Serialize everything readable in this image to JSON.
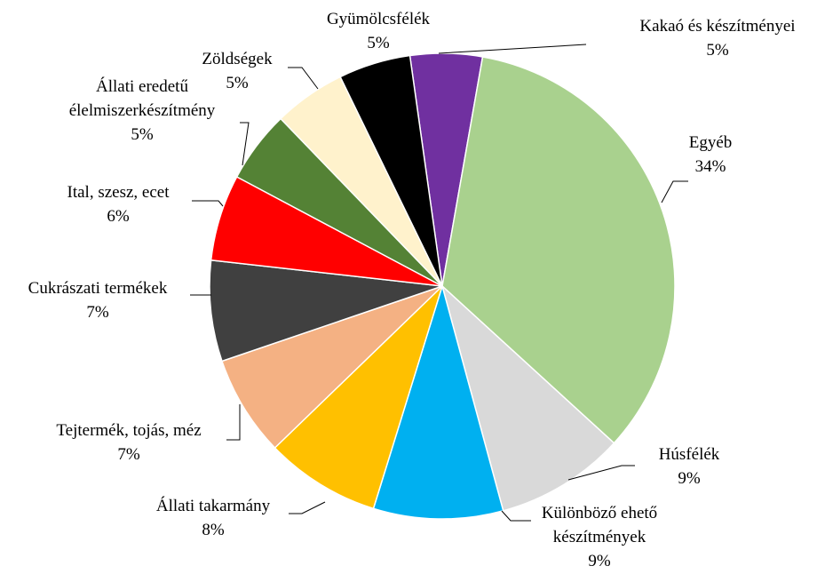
{
  "chart_data": {
    "type": "pie",
    "categories": [
      "Kakaó és készítményei",
      "Egyéb",
      "Húsfélék",
      "Különböző ehető\nkészítmények",
      "Állati takarmány",
      "Tejtermék, tojás, méz",
      "Cukrászati termékek",
      "Ital, szesz, ecet",
      "Állati eredetű\nélelmiszerkészítmény",
      "Zöldségek",
      "Gyümölcsfélék"
    ],
    "values": [
      5,
      34,
      9,
      9,
      8,
      7,
      7,
      6,
      5,
      5,
      5
    ],
    "value_labels": [
      "5%",
      "34%",
      "9%",
      "9%",
      "8%",
      "7%",
      "7%",
      "6%",
      "5%",
      "5%",
      "5%"
    ],
    "colors": [
      "#7030a0",
      "#a9d18e",
      "#d9d9d9",
      "#00b0f0",
      "#ffc000",
      "#f4b183",
      "#404040",
      "#ff0000",
      "#548235",
      "#fff2cc",
      "#000000"
    ]
  }
}
